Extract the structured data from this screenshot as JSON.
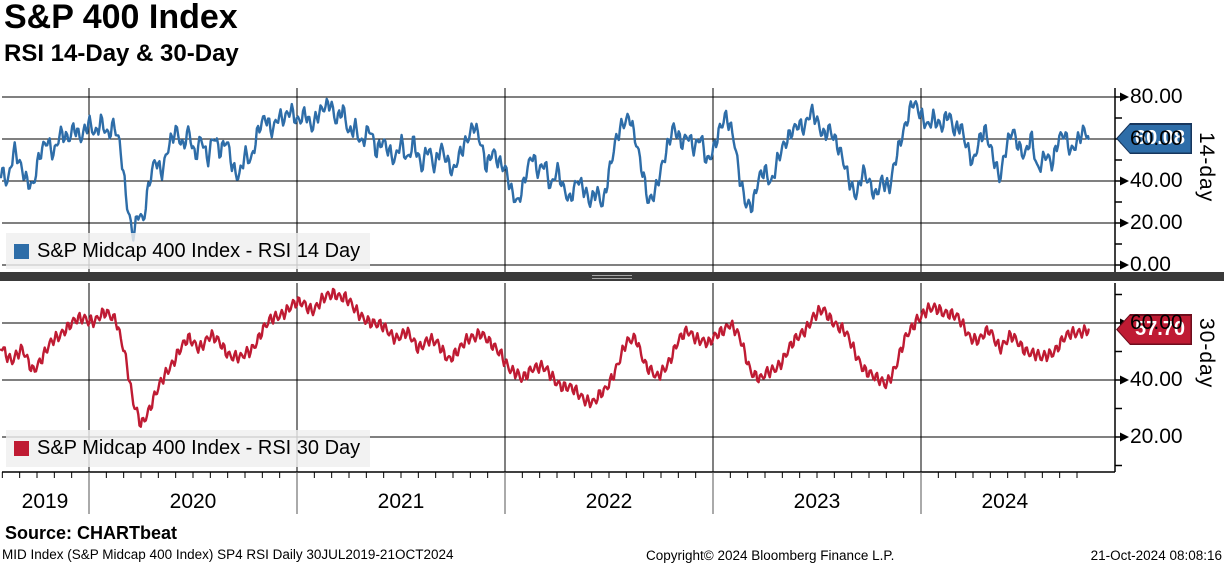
{
  "header": {
    "title": "S&P 400 Index",
    "subtitle": "RSI 14-Day & 30-Day"
  },
  "footer": {
    "source": "Source: CHARTbeat",
    "meta": "MID Index (S&P Midcap 400 Index) SP4 RSI  Daily 30JUL2019-21OCT2024",
    "copyright": "Copyright© 2024 Bloomberg Finance L.P.",
    "timestamp": "21-Oct-2024 08:08:16"
  },
  "colors": {
    "rsi14": "#2e6da8",
    "rsi14_border": "#17365d",
    "rsi30": "#bf1b33",
    "rsi30_border": "#6e0d1d",
    "grid": "#000000",
    "separator": "#3a3a3a",
    "legend_bg": "#efefef"
  },
  "chart_data": {
    "type": "line",
    "title": "S&P 400 Index",
    "subtitle": "RSI 14-Day & 30-Day",
    "x_range": [
      2019.577,
      2024.806
    ],
    "x_year_ticks": [
      2020,
      2021,
      2022,
      2023,
      2024
    ],
    "x_year_labels": [
      "2019",
      "2020",
      "2021",
      "2022",
      "2023",
      "2024"
    ],
    "grid": true,
    "legend_position": "bottom-left-inside",
    "panels": [
      {
        "name": "RSI 14 Day",
        "legend": "S&P Midcap 400 Index - RSI 14 Day",
        "axis_label": "14-day",
        "color": "#2e6da8",
        "last_value": "60.08",
        "ylim": [
          0,
          84
        ],
        "ytick_values": [
          80,
          60,
          40,
          20,
          0
        ],
        "ytick_labels": [
          "80.00",
          "60.00",
          "40.00",
          "20.00",
          "0.00"
        ],
        "minor_ticks": [
          70,
          50,
          30,
          10
        ],
        "jitter": 2.8,
        "points": [
          [
            2019.58,
            46
          ],
          [
            2019.61,
            38
          ],
          [
            2019.64,
            54
          ],
          [
            2019.67,
            48
          ],
          [
            2019.7,
            42
          ],
          [
            2019.73,
            37
          ],
          [
            2019.76,
            50
          ],
          [
            2019.8,
            60
          ],
          [
            2019.83,
            54
          ],
          [
            2019.86,
            63
          ],
          [
            2019.9,
            58
          ],
          [
            2019.93,
            66
          ],
          [
            2019.96,
            62
          ],
          [
            2020.0,
            68
          ],
          [
            2020.03,
            60
          ],
          [
            2020.06,
            69
          ],
          [
            2020.09,
            63
          ],
          [
            2020.12,
            68
          ],
          [
            2020.15,
            55
          ],
          [
            2020.18,
            30
          ],
          [
            2020.21,
            15
          ],
          [
            2020.24,
            27
          ],
          [
            2020.26,
            20
          ],
          [
            2020.29,
            38
          ],
          [
            2020.32,
            50
          ],
          [
            2020.35,
            45
          ],
          [
            2020.38,
            57
          ],
          [
            2020.42,
            63
          ],
          [
            2020.45,
            55
          ],
          [
            2020.48,
            66
          ],
          [
            2020.51,
            52
          ],
          [
            2020.54,
            60
          ],
          [
            2020.57,
            48
          ],
          [
            2020.6,
            63
          ],
          [
            2020.63,
            55
          ],
          [
            2020.66,
            60
          ],
          [
            2020.69,
            45
          ],
          [
            2020.72,
            41
          ],
          [
            2020.75,
            55
          ],
          [
            2020.78,
            50
          ],
          [
            2020.81,
            62
          ],
          [
            2020.85,
            70
          ],
          [
            2020.88,
            65
          ],
          [
            2020.91,
            72
          ],
          [
            2020.94,
            68
          ],
          [
            2020.97,
            73
          ],
          [
            2021.0,
            69
          ],
          [
            2021.04,
            74
          ],
          [
            2021.07,
            64
          ],
          [
            2021.1,
            70
          ],
          [
            2021.13,
            76
          ],
          [
            2021.16,
            79
          ],
          [
            2021.19,
            68
          ],
          [
            2021.22,
            73
          ],
          [
            2021.25,
            62
          ],
          [
            2021.28,
            68
          ],
          [
            2021.31,
            58
          ],
          [
            2021.35,
            64
          ],
          [
            2021.38,
            53
          ],
          [
            2021.41,
            61
          ],
          [
            2021.44,
            56
          ],
          [
            2021.47,
            48
          ],
          [
            2021.5,
            58
          ],
          [
            2021.53,
            50
          ],
          [
            2021.56,
            61
          ],
          [
            2021.6,
            45
          ],
          [
            2021.63,
            55
          ],
          [
            2021.66,
            47
          ],
          [
            2021.69,
            58
          ],
          [
            2021.72,
            50
          ],
          [
            2021.75,
            42
          ],
          [
            2021.78,
            52
          ],
          [
            2021.81,
            60
          ],
          [
            2021.85,
            67
          ],
          [
            2021.88,
            58
          ],
          [
            2021.91,
            46
          ],
          [
            2021.94,
            56
          ],
          [
            2021.97,
            50
          ],
          [
            2022.0,
            45
          ],
          [
            2022.03,
            34
          ],
          [
            2022.06,
            30
          ],
          [
            2022.1,
            44
          ],
          [
            2022.13,
            52
          ],
          [
            2022.16,
            42
          ],
          [
            2022.19,
            50
          ],
          [
            2022.22,
            38
          ],
          [
            2022.25,
            46
          ],
          [
            2022.28,
            35
          ],
          [
            2022.31,
            30
          ],
          [
            2022.35,
            43
          ],
          [
            2022.38,
            36
          ],
          [
            2022.41,
            28
          ],
          [
            2022.44,
            35
          ],
          [
            2022.47,
            30
          ],
          [
            2022.5,
            45
          ],
          [
            2022.53,
            57
          ],
          [
            2022.56,
            65
          ],
          [
            2022.6,
            72
          ],
          [
            2022.63,
            60
          ],
          [
            2022.66,
            44
          ],
          [
            2022.69,
            28
          ],
          [
            2022.72,
            35
          ],
          [
            2022.75,
            47
          ],
          [
            2022.78,
            56
          ],
          [
            2022.81,
            64
          ],
          [
            2022.85,
            58
          ],
          [
            2022.88,
            64
          ],
          [
            2022.91,
            55
          ],
          [
            2022.94,
            60
          ],
          [
            2022.97,
            48
          ],
          [
            2023.0,
            56
          ],
          [
            2023.03,
            65
          ],
          [
            2023.06,
            70
          ],
          [
            2023.1,
            60
          ],
          [
            2023.13,
            42
          ],
          [
            2023.16,
            30
          ],
          [
            2023.19,
            27
          ],
          [
            2023.22,
            40
          ],
          [
            2023.25,
            46
          ],
          [
            2023.28,
            40
          ],
          [
            2023.31,
            50
          ],
          [
            2023.35,
            57
          ],
          [
            2023.38,
            64
          ],
          [
            2023.41,
            69
          ],
          [
            2023.44,
            65
          ],
          [
            2023.47,
            72
          ],
          [
            2023.5,
            68
          ],
          [
            2023.53,
            63
          ],
          [
            2023.56,
            66
          ],
          [
            2023.6,
            55
          ],
          [
            2023.63,
            48
          ],
          [
            2023.66,
            40
          ],
          [
            2023.69,
            34
          ],
          [
            2023.72,
            44
          ],
          [
            2023.75,
            38
          ],
          [
            2023.78,
            33
          ],
          [
            2023.81,
            42
          ],
          [
            2023.85,
            36
          ],
          [
            2023.88,
            50
          ],
          [
            2023.91,
            62
          ],
          [
            2023.94,
            73
          ],
          [
            2023.96,
            79
          ],
          [
            2024.0,
            70
          ],
          [
            2024.03,
            65
          ],
          [
            2024.06,
            72
          ],
          [
            2024.1,
            66
          ],
          [
            2024.13,
            71
          ],
          [
            2024.16,
            63
          ],
          [
            2024.19,
            68
          ],
          [
            2024.22,
            58
          ],
          [
            2024.25,
            47
          ],
          [
            2024.28,
            58
          ],
          [
            2024.31,
            65
          ],
          [
            2024.35,
            52
          ],
          [
            2024.38,
            40
          ],
          [
            2024.41,
            55
          ],
          [
            2024.44,
            65
          ],
          [
            2024.47,
            58
          ],
          [
            2024.5,
            52
          ],
          [
            2024.53,
            60
          ],
          [
            2024.56,
            44
          ],
          [
            2024.6,
            55
          ],
          [
            2024.63,
            48
          ],
          [
            2024.66,
            58
          ],
          [
            2024.69,
            62
          ],
          [
            2024.72,
            55
          ],
          [
            2024.75,
            60
          ],
          [
            2024.78,
            63
          ],
          [
            2024.806,
            60.08
          ]
        ]
      },
      {
        "name": "RSI 30 Day",
        "legend": "S&P Midcap 400 Index - RSI 30 Day",
        "axis_label": "30-day",
        "color": "#bf1b33",
        "last_value": "57.70",
        "ylim": [
          8,
          74
        ],
        "ytick_values": [
          60,
          40,
          20
        ],
        "ytick_labels": [
          "60.00",
          "40.00",
          "20.00"
        ],
        "minor_ticks": [
          70,
          50,
          30,
          10
        ],
        "jitter": 1.6,
        "points": [
          [
            2019.58,
            52
          ],
          [
            2019.63,
            47
          ],
          [
            2019.68,
            50
          ],
          [
            2019.73,
            44
          ],
          [
            2019.78,
            48
          ],
          [
            2019.83,
            54
          ],
          [
            2019.88,
            58
          ],
          [
            2019.93,
            60
          ],
          [
            2019.98,
            62
          ],
          [
            2020.03,
            61
          ],
          [
            2020.08,
            63
          ],
          [
            2020.13,
            62
          ],
          [
            2020.17,
            50
          ],
          [
            2020.21,
            32
          ],
          [
            2020.25,
            25
          ],
          [
            2020.29,
            30
          ],
          [
            2020.33,
            36
          ],
          [
            2020.38,
            44
          ],
          [
            2020.43,
            50
          ],
          [
            2020.48,
            54
          ],
          [
            2020.53,
            52
          ],
          [
            2020.58,
            55
          ],
          [
            2020.63,
            53
          ],
          [
            2020.68,
            49
          ],
          [
            2020.73,
            47
          ],
          [
            2020.78,
            51
          ],
          [
            2020.83,
            57
          ],
          [
            2020.88,
            61
          ],
          [
            2020.93,
            64
          ],
          [
            2020.98,
            66
          ],
          [
            2021.03,
            67
          ],
          [
            2021.08,
            65
          ],
          [
            2021.13,
            68
          ],
          [
            2021.18,
            71
          ],
          [
            2021.23,
            69
          ],
          [
            2021.28,
            64
          ],
          [
            2021.33,
            62
          ],
          [
            2021.38,
            59
          ],
          [
            2021.43,
            58
          ],
          [
            2021.48,
            55
          ],
          [
            2021.53,
            56
          ],
          [
            2021.58,
            52
          ],
          [
            2021.63,
            54
          ],
          [
            2021.68,
            52
          ],
          [
            2021.73,
            48
          ],
          [
            2021.78,
            50
          ],
          [
            2021.83,
            55
          ],
          [
            2021.88,
            57
          ],
          [
            2021.93,
            52
          ],
          [
            2021.98,
            50
          ],
          [
            2022.03,
            43
          ],
          [
            2022.08,
            40
          ],
          [
            2022.13,
            45
          ],
          [
            2022.18,
            44
          ],
          [
            2022.23,
            41
          ],
          [
            2022.28,
            38
          ],
          [
            2022.33,
            36
          ],
          [
            2022.38,
            34
          ],
          [
            2022.43,
            32
          ],
          [
            2022.48,
            36
          ],
          [
            2022.53,
            44
          ],
          [
            2022.58,
            52
          ],
          [
            2022.63,
            55
          ],
          [
            2022.68,
            45
          ],
          [
            2022.73,
            40
          ],
          [
            2022.78,
            46
          ],
          [
            2022.83,
            53
          ],
          [
            2022.88,
            57
          ],
          [
            2022.93,
            55
          ],
          [
            2022.98,
            52
          ],
          [
            2023.03,
            57
          ],
          [
            2023.08,
            60
          ],
          [
            2023.13,
            54
          ],
          [
            2023.18,
            44
          ],
          [
            2023.23,
            40
          ],
          [
            2023.28,
            43
          ],
          [
            2023.33,
            47
          ],
          [
            2023.38,
            52
          ],
          [
            2023.43,
            57
          ],
          [
            2023.48,
            62
          ],
          [
            2023.53,
            64
          ],
          [
            2023.58,
            61
          ],
          [
            2023.63,
            57
          ],
          [
            2023.68,
            50
          ],
          [
            2023.73,
            44
          ],
          [
            2023.78,
            40
          ],
          [
            2023.83,
            39
          ],
          [
            2023.88,
            45
          ],
          [
            2023.93,
            55
          ],
          [
            2023.98,
            62
          ],
          [
            2024.03,
            64
          ],
          [
            2024.08,
            65
          ],
          [
            2024.13,
            64
          ],
          [
            2024.18,
            61
          ],
          [
            2024.23,
            56
          ],
          [
            2024.28,
            54
          ],
          [
            2024.33,
            57
          ],
          [
            2024.38,
            52
          ],
          [
            2024.43,
            55
          ],
          [
            2024.48,
            52
          ],
          [
            2024.53,
            50
          ],
          [
            2024.58,
            47
          ],
          [
            2024.63,
            50
          ],
          [
            2024.68,
            54
          ],
          [
            2024.73,
            56
          ],
          [
            2024.78,
            58
          ],
          [
            2024.806,
            57.7
          ]
        ]
      }
    ]
  }
}
